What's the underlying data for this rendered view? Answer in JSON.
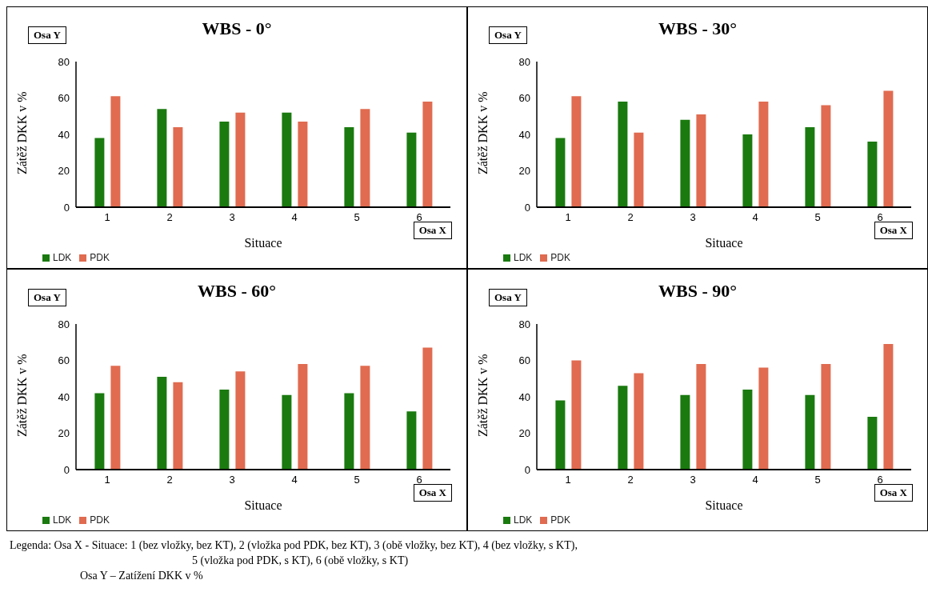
{
  "chart_data": [
    {
      "type": "bar",
      "title": "WBS - 0°",
      "xlabel": "Situace",
      "ylabel": "Zátěž DKK v %",
      "categories": [
        "1",
        "2",
        "3",
        "4",
        "5",
        "6"
      ],
      "ylim": [
        0,
        80
      ],
      "yticks": [
        0,
        20,
        40,
        60,
        80
      ],
      "grid": false,
      "legend": "bottom left",
      "annotations": [
        "Osa Y",
        "Osa X"
      ],
      "series": [
        {
          "name": "LDK",
          "color": "#1a7a0f",
          "values": [
            38,
            54,
            47,
            52,
            44,
            41
          ]
        },
        {
          "name": "PDK",
          "color": "#e06b50",
          "values": [
            61,
            44,
            52,
            47,
            54,
            58
          ]
        }
      ]
    },
    {
      "type": "bar",
      "title": "WBS - 30°",
      "xlabel": "Situace",
      "ylabel": "Zátěž DKK v %",
      "categories": [
        "1",
        "2",
        "3",
        "4",
        "5",
        "6"
      ],
      "ylim": [
        0,
        80
      ],
      "yticks": [
        0,
        20,
        40,
        60,
        80
      ],
      "grid": false,
      "legend": "bottom left",
      "annotations": [
        "Osa Y",
        "Osa X"
      ],
      "series": [
        {
          "name": "LDK",
          "color": "#1a7a0f",
          "values": [
            38,
            58,
            48,
            40,
            44,
            36
          ]
        },
        {
          "name": "PDK",
          "color": "#e06b50",
          "values": [
            61,
            41,
            51,
            58,
            56,
            64
          ]
        }
      ]
    },
    {
      "type": "bar",
      "title": "WBS - 60°",
      "xlabel": "Situace",
      "ylabel": "Zátěž DKK v %",
      "categories": [
        "1",
        "2",
        "3",
        "4",
        "5",
        "6"
      ],
      "ylim": [
        0,
        80
      ],
      "yticks": [
        0,
        20,
        40,
        60,
        80
      ],
      "grid": false,
      "legend": "bottom left",
      "annotations": [
        "Osa Y",
        "Osa X"
      ],
      "series": [
        {
          "name": "LDK",
          "color": "#1a7a0f",
          "values": [
            42,
            51,
            44,
            41,
            42,
            32
          ]
        },
        {
          "name": "PDK",
          "color": "#e06b50",
          "values": [
            57,
            48,
            54,
            58,
            57,
            67
          ]
        }
      ]
    },
    {
      "type": "bar",
      "title": "WBS - 90°",
      "xlabel": "Situace",
      "ylabel": "Zátěž DKK v %",
      "categories": [
        "1",
        "2",
        "3",
        "4",
        "5",
        "6"
      ],
      "ylim": [
        0,
        80
      ],
      "yticks": [
        0,
        20,
        40,
        60,
        80
      ],
      "grid": false,
      "legend": "bottom left",
      "annotations": [
        "Osa Y",
        "Osa X"
      ],
      "series": [
        {
          "name": "LDK",
          "color": "#1a7a0f",
          "values": [
            38,
            46,
            41,
            44,
            41,
            29
          ]
        },
        {
          "name": "PDK",
          "color": "#e06b50",
          "values": [
            60,
            53,
            58,
            56,
            58,
            69
          ]
        }
      ]
    },
    {
      "type": "other",
      "annotations": [
        "Legenda: Osa X - Situace: 1 (bez vložky, bez KT), 2 (vložka pod PDK, bez KT), 3 (obě vložky, bez KT), 4 (bez vložky, s KT),",
        "5 (vložka pod PDK, s KT), 6 (obě vložky, s KT)",
        "Osa Y – Zatížení DKK v %"
      ]
    }
  ]
}
